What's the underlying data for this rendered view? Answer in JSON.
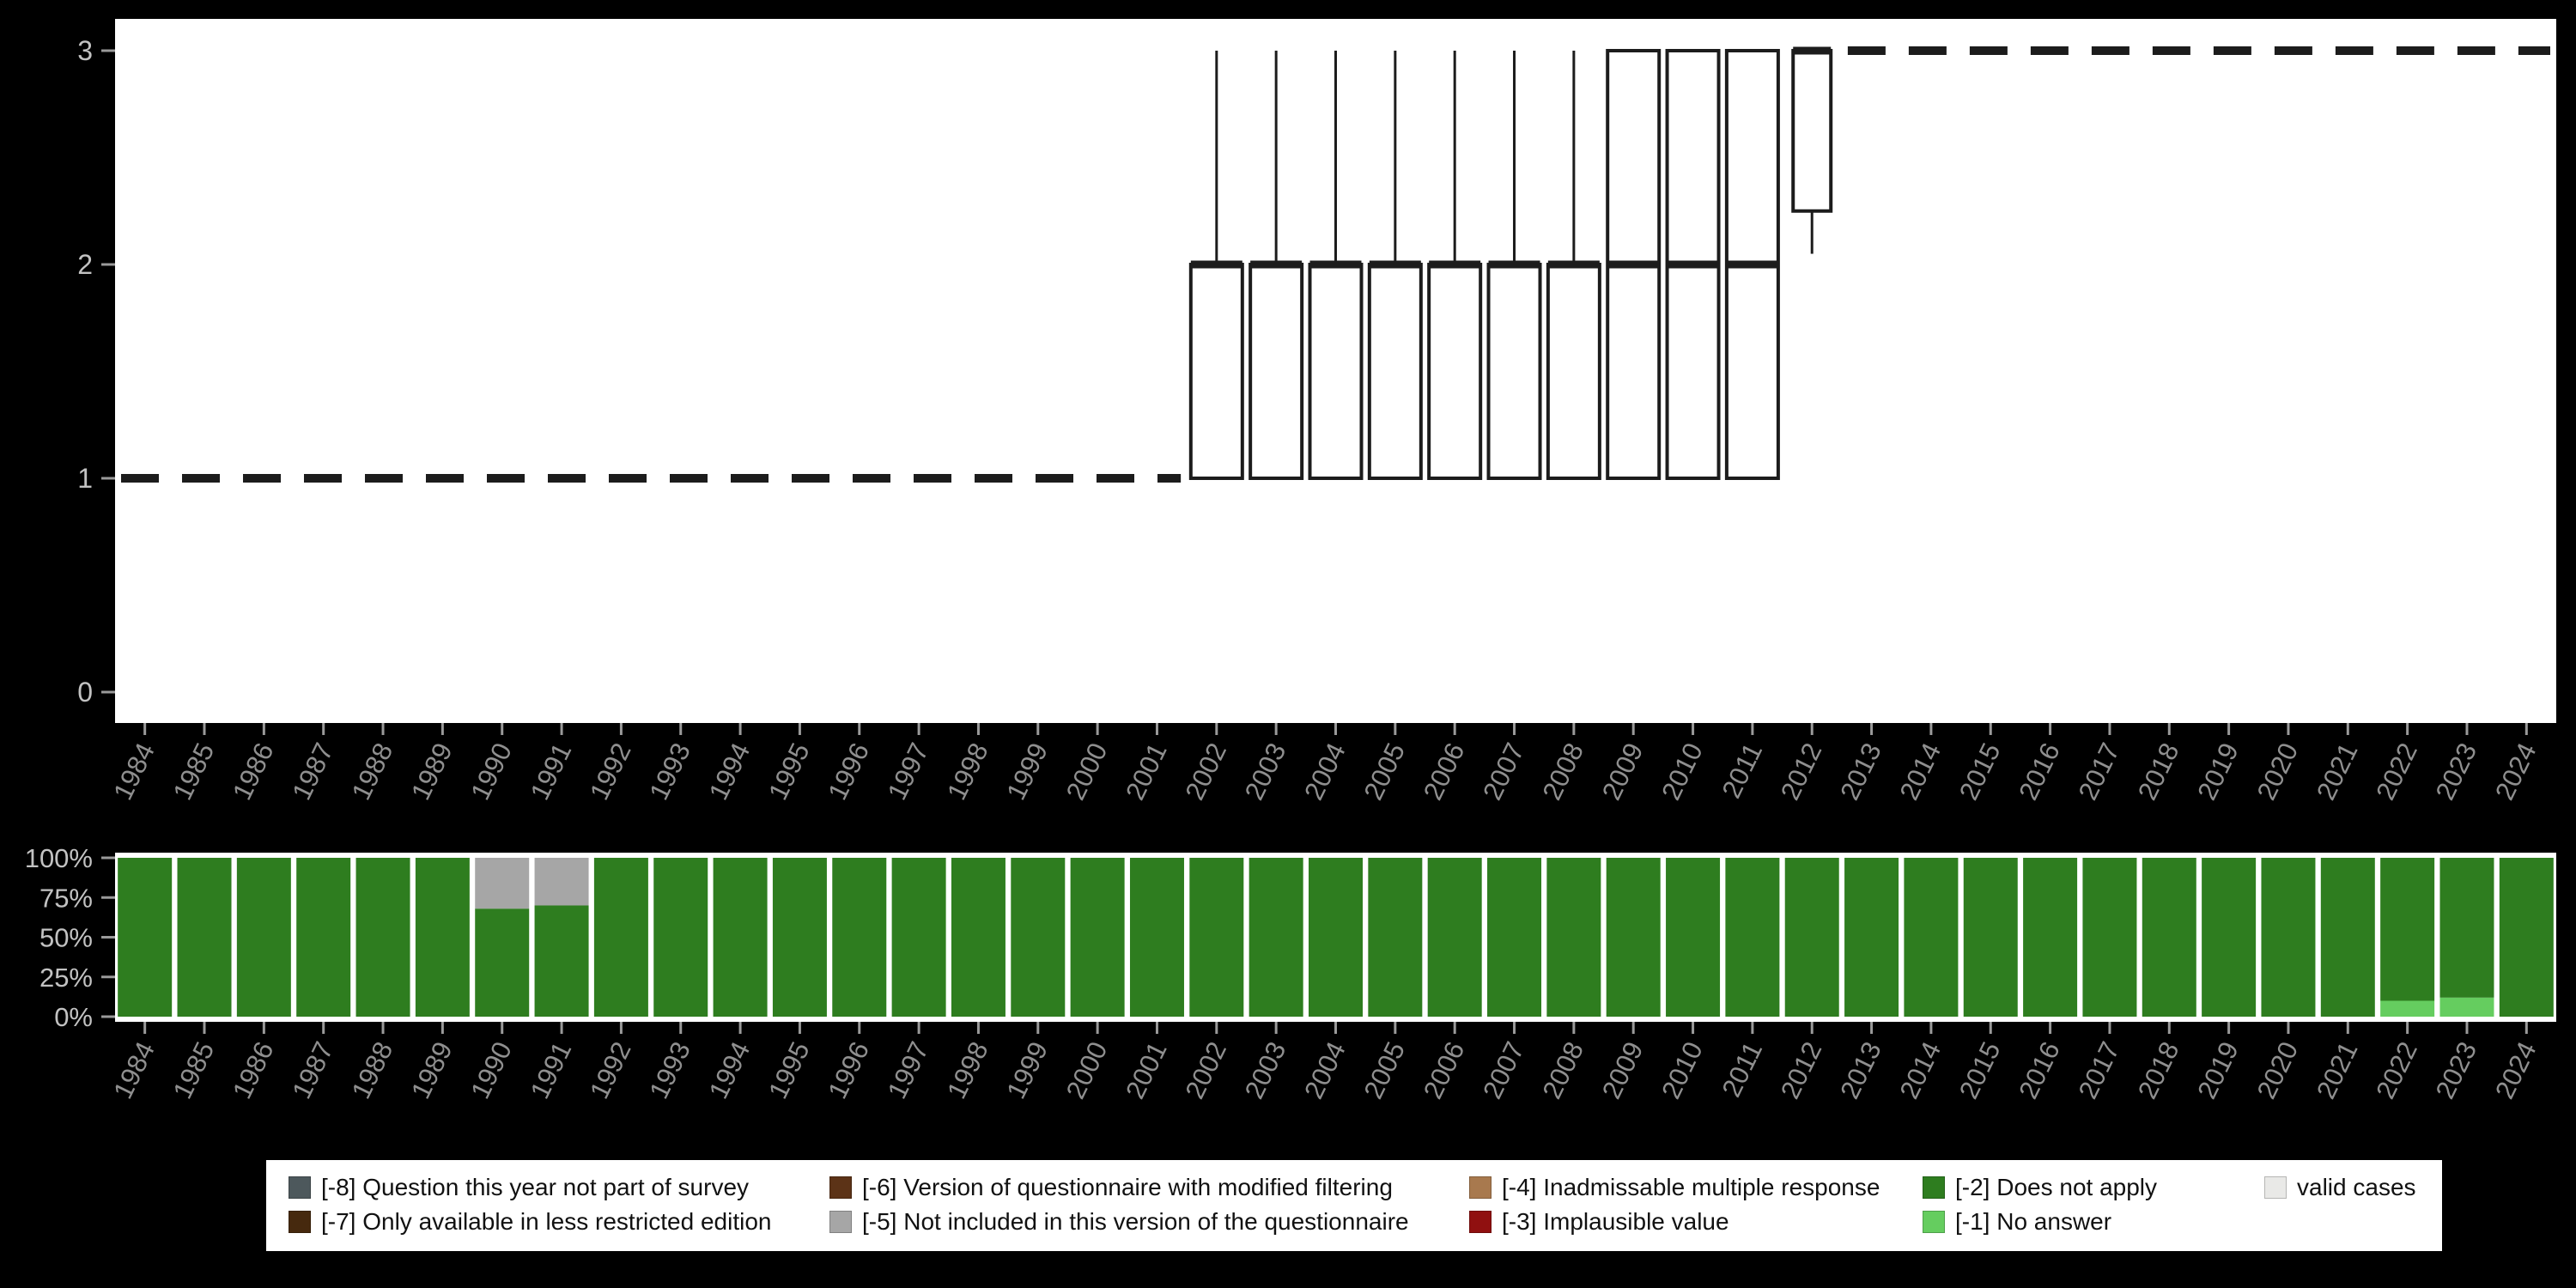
{
  "figure": {
    "background": "#000000",
    "panel_background": "#ffffff"
  },
  "chart_data": [
    {
      "type": "boxplot",
      "title": "",
      "xlabel": "",
      "ylabel": "",
      "categories": [
        1984,
        1985,
        1986,
        1987,
        1988,
        1989,
        1990,
        1991,
        1992,
        1993,
        1994,
        1995,
        1996,
        1997,
        1998,
        1999,
        2000,
        2001,
        2002,
        2003,
        2004,
        2005,
        2006,
        2007,
        2008,
        2009,
        2010,
        2011,
        2012,
        2013,
        2014,
        2015,
        2016,
        2017,
        2018,
        2019,
        2020,
        2021,
        2022,
        2023,
        2024
      ],
      "ylim": [
        0,
        3
      ],
      "yticks": [
        0,
        1,
        2,
        3
      ],
      "line_segments": [
        {
          "from": 1984,
          "to": 2001,
          "value": 1
        },
        {
          "from": 2013,
          "to": 2024,
          "value": 3
        }
      ],
      "boxes": [
        {
          "year": 2002,
          "q1": 1,
          "median": 2,
          "q3": 2,
          "whisker_low": 1,
          "whisker_high": 3
        },
        {
          "year": 2003,
          "q1": 1,
          "median": 2,
          "q3": 2,
          "whisker_low": 1,
          "whisker_high": 3
        },
        {
          "year": 2004,
          "q1": 1,
          "median": 2,
          "q3": 2,
          "whisker_low": 1,
          "whisker_high": 3
        },
        {
          "year": 2005,
          "q1": 1,
          "median": 2,
          "q3": 2,
          "whisker_low": 1,
          "whisker_high": 3
        },
        {
          "year": 2006,
          "q1": 1,
          "median": 2,
          "q3": 2,
          "whisker_low": 1,
          "whisker_high": 3
        },
        {
          "year": 2007,
          "q1": 1,
          "median": 2,
          "q3": 2,
          "whisker_low": 1,
          "whisker_high": 3
        },
        {
          "year": 2008,
          "q1": 1,
          "median": 2,
          "q3": 2,
          "whisker_low": 1,
          "whisker_high": 3
        },
        {
          "year": 2009,
          "q1": 1,
          "median": 2,
          "q3": 3,
          "whisker_low": 1,
          "whisker_high": 3
        },
        {
          "year": 2010,
          "q1": 1,
          "median": 2,
          "q3": 3,
          "whisker_low": 1,
          "whisker_high": 3
        },
        {
          "year": 2011,
          "q1": 1,
          "median": 2,
          "q3": 3,
          "whisker_low": 1,
          "whisker_high": 3
        },
        {
          "year": 2012,
          "q1": 2.25,
          "median": 3,
          "q3": 3,
          "whisker_low": 2.05,
          "whisker_high": 3,
          "narrow": true
        }
      ]
    },
    {
      "type": "bar",
      "stacked": true,
      "unit": "percent",
      "categories": [
        1984,
        1985,
        1986,
        1987,
        1988,
        1989,
        1990,
        1991,
        1992,
        1993,
        1994,
        1995,
        1996,
        1997,
        1998,
        1999,
        2000,
        2001,
        2002,
        2003,
        2004,
        2005,
        2006,
        2007,
        2008,
        2009,
        2010,
        2011,
        2012,
        2013,
        2014,
        2015,
        2016,
        2017,
        2018,
        2019,
        2020,
        2021,
        2022,
        2023,
        2024
      ],
      "ytick_values": [
        0,
        25,
        50,
        75,
        100
      ],
      "ytick_labels": [
        "0%",
        "25%",
        "50%",
        "75%",
        "100%"
      ],
      "default_stack": [
        {
          "code": "-2",
          "value": 100
        }
      ],
      "bars": {
        "1990": [
          {
            "code": "-2",
            "value": 68
          },
          {
            "code": "-5",
            "value": 32
          }
        ],
        "1991": [
          {
            "code": "-2",
            "value": 70
          },
          {
            "code": "-5",
            "value": 30
          }
        ],
        "2022": [
          {
            "code": "-1",
            "value": 10
          },
          {
            "code": "-2",
            "value": 90
          }
        ],
        "2023": [
          {
            "code": "-1",
            "value": 12
          },
          {
            "code": "-2",
            "value": 88
          }
        ]
      }
    }
  ],
  "legend": {
    "items": [
      {
        "code": "-8",
        "label": "[-8] Question this year not part of survey",
        "color": "#4d585c"
      },
      {
        "code": "-6",
        "label": "[-6] Version of questionnaire with modified filtering",
        "color": "#5c3317"
      },
      {
        "code": "-4",
        "label": "[-4] Inadmissable multiple response",
        "color": "#a8794e"
      },
      {
        "code": "-2",
        "label": "[-2] Does not apply",
        "color": "#2e7d1f"
      },
      {
        "code": "valid",
        "label": "valid cases",
        "color": "#e9e9e7"
      },
      {
        "code": "-7",
        "label": "[-7] Only available in less restricted edition",
        "color": "#46290e"
      },
      {
        "code": "-5",
        "label": "[-5] Not included in this version of the questionnaire",
        "color": "#a6a6a6"
      },
      {
        "code": "-3",
        "label": "[-3] Implausible value",
        "color": "#901010"
      },
      {
        "code": "-1",
        "label": "[-1] No answer",
        "color": "#65cd5f"
      }
    ]
  },
  "colors": {
    "-8": "#4d585c",
    "-7": "#46290e",
    "-6": "#5c3317",
    "-5": "#a6a6a6",
    "-4": "#a8794e",
    "-3": "#901010",
    "-2": "#2e7d1f",
    "-1": "#65cd5f",
    "valid": "#e9e9e7",
    "axis_tick_text": "#c2c2c2",
    "year_text": "#8f8f8f",
    "stroke": "#1c1c1c",
    "panel": "#ffffff",
    "background": "#000000"
  }
}
